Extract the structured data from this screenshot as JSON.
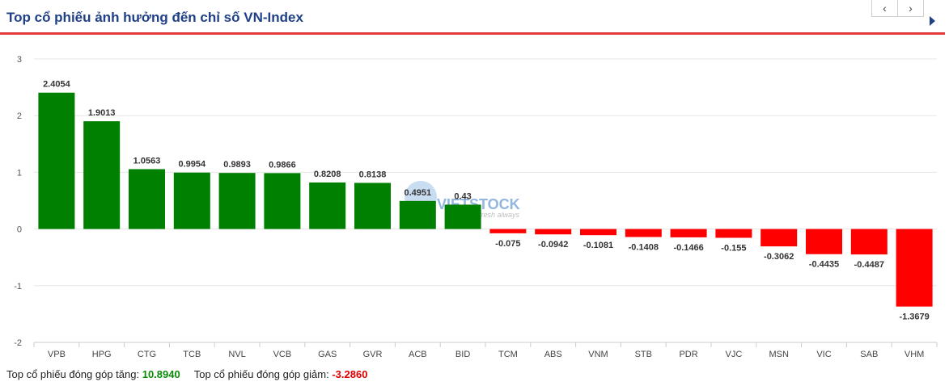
{
  "header": {
    "title": "Top cổ phiếu ảnh hưởng đến chỉ số VN-Index",
    "prev_label": "‹",
    "next_label": "›"
  },
  "watermark": {
    "text": "VIETSTOCK",
    "tagline": "fresh always"
  },
  "colors": {
    "positive": "#008000",
    "negative": "#ff0000",
    "title": "#1f3f87",
    "accent_line": "#e23a3a"
  },
  "chart_data": {
    "type": "bar",
    "title": "",
    "xlabel": "",
    "ylabel": "",
    "ylim": [
      -2,
      3
    ],
    "yticks": [
      "3",
      "2",
      "1",
      "0",
      "-1",
      "-2"
    ],
    "grid": true,
    "categories": [
      "VPB",
      "HPG",
      "CTG",
      "TCB",
      "NVL",
      "VCB",
      "GAS",
      "GVR",
      "ACB",
      "BID",
      "TCM",
      "ABS",
      "VNM",
      "STB",
      "PDR",
      "VJC",
      "MSN",
      "VIC",
      "SAB",
      "VHM"
    ],
    "values": [
      2.4054,
      1.9013,
      1.0563,
      0.9954,
      0.9893,
      0.9866,
      0.8208,
      0.8138,
      0.4951,
      0.43,
      -0.075,
      -0.0942,
      -0.1081,
      -0.1408,
      -0.1466,
      -0.155,
      -0.3062,
      -0.4435,
      -0.4487,
      -1.3679
    ],
    "labels": [
      "2.4054",
      "1.9013",
      "1.0563",
      "0.9954",
      "0.9893",
      "0.9866",
      "0.8208",
      "0.8138",
      "0.4951",
      "0.43",
      "-0.075",
      "-0.0942",
      "-0.1081",
      "-0.1408",
      "-0.1466",
      "-0.155",
      "-0.3062",
      "-0.4435",
      "-0.4487",
      "-1.3679"
    ]
  },
  "footer": {
    "up_label": "Top cổ phiếu đóng góp tăng:",
    "up_value": "10.8940",
    "down_label": "Top cổ phiếu đóng góp giảm:",
    "down_value": "-3.2860"
  }
}
